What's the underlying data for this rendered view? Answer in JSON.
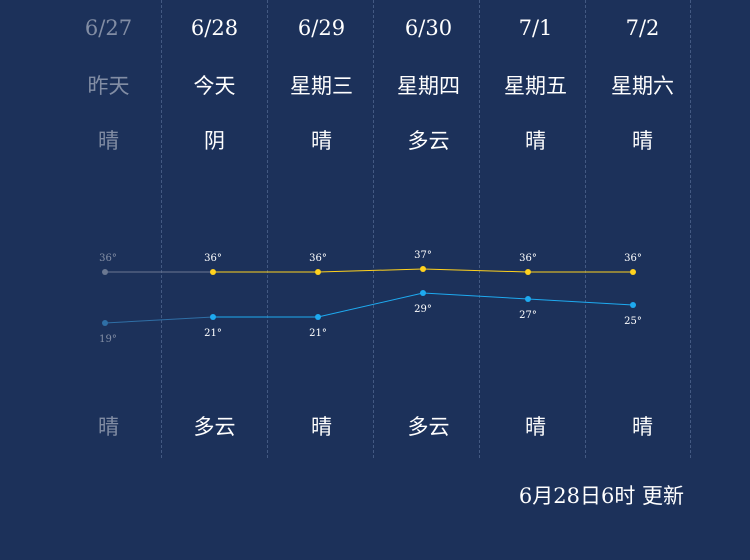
{
  "days": [
    {
      "date": "6/27",
      "weekday": "昨天",
      "day_weather": "晴",
      "night_weather": "晴",
      "past": true
    },
    {
      "date": "6/28",
      "weekday": "今天",
      "day_weather": "阴",
      "night_weather": "多云",
      "past": false
    },
    {
      "date": "6/29",
      "weekday": "星期三",
      "day_weather": "晴",
      "night_weather": "晴",
      "past": false
    },
    {
      "date": "6/30",
      "weekday": "星期四",
      "day_weather": "多云",
      "night_weather": "多云",
      "past": false
    },
    {
      "date": "7/1",
      "weekday": "星期五",
      "day_weather": "晴",
      "night_weather": "晴",
      "past": false
    },
    {
      "date": "7/2",
      "weekday": "星期六",
      "day_weather": "晴",
      "night_weather": "晴",
      "past": false
    }
  ],
  "chart_data": {
    "type": "line",
    "categories": [
      "6/27",
      "6/28",
      "6/29",
      "6/30",
      "7/1",
      "7/2"
    ],
    "series": [
      {
        "values": [
          36,
          36,
          36,
          37,
          36,
          36
        ],
        "labels": [
          "36°",
          "36°",
          "36°",
          "37°",
          "36°",
          "36°"
        ],
        "color": "#ffd21e"
      },
      {
        "values": [
          19,
          21,
          21,
          29,
          27,
          25
        ],
        "labels": [
          "19°",
          "21°",
          "21°",
          "29°",
          "27°",
          "25°"
        ],
        "color": "#1eaaf0"
      }
    ],
    "past_color": "#6b7891",
    "past_low_color": "#2f6fa6"
  },
  "update_text": "6月28日6时 更新"
}
